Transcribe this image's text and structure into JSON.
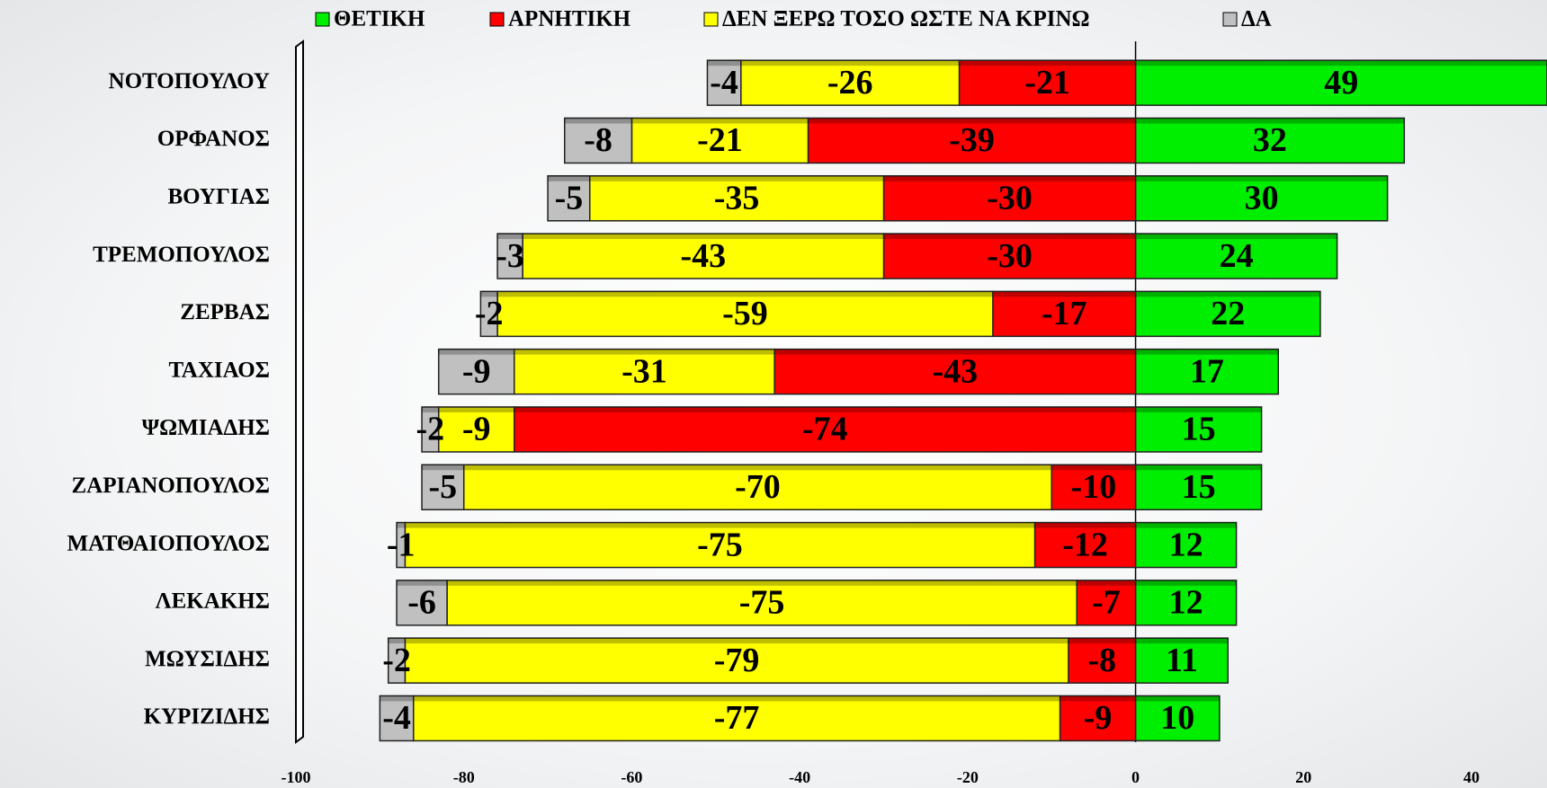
{
  "chart_data": {
    "type": "diverging-stacked-bar",
    "categories": [
      "ΝΟΤΟΠΟΥΛΟΥ",
      "ΟΡΦΑΝΟΣ",
      "ΒΟΥΓΙΑΣ",
      "ΤΡΕΜΟΠΟΥΛΟΣ",
      "ΖΕΡΒΑΣ",
      "ΤΑΧΙΑΟΣ",
      "ΨΩΜΙΑΔΗΣ",
      "ΖΑΡΙΑΝΟΠΟΥΛΟΣ",
      "ΜΑΤΘΑΙΟΠΟΥΛΟΣ",
      "ΛΕΚΑΚΗΣ",
      "ΜΩΥΣΙΔΗΣ",
      "ΚΥΡΙΖΙΔΗΣ"
    ],
    "series": [
      {
        "name": "ΘΕΤΙΚΗ",
        "color": "#00ee00",
        "values": [
          49,
          32,
          30,
          24,
          22,
          17,
          15,
          15,
          12,
          12,
          11,
          10
        ]
      },
      {
        "name": "ΑΡΝΗΤΙΚΗ",
        "color": "#ff0000",
        "values": [
          -21,
          -39,
          -30,
          -30,
          -17,
          -43,
          -74,
          -10,
          -12,
          -7,
          -8,
          -9
        ]
      },
      {
        "name": "ΔΕΝ ΞΕΡΩ ΤΟΣΟ ΩΣΤΕ ΝΑ ΚΡΙΝΩ",
        "color": "#ffff00",
        "values": [
          -26,
          -21,
          -35,
          -43,
          -59,
          -31,
          -9,
          -70,
          -75,
          -75,
          -79,
          -77
        ]
      },
      {
        "name": "ΔΑ",
        "color": "#c0c0c0",
        "values": [
          -4,
          -8,
          -5,
          -3,
          -2,
          -9,
          -2,
          -5,
          -1,
          -6,
          -2,
          -4
        ]
      }
    ],
    "xlim": [
      -100,
      49
    ],
    "xticks": [
      -100,
      -80,
      -60,
      -40,
      -20,
      0,
      20,
      40
    ],
    "legend": "top"
  }
}
